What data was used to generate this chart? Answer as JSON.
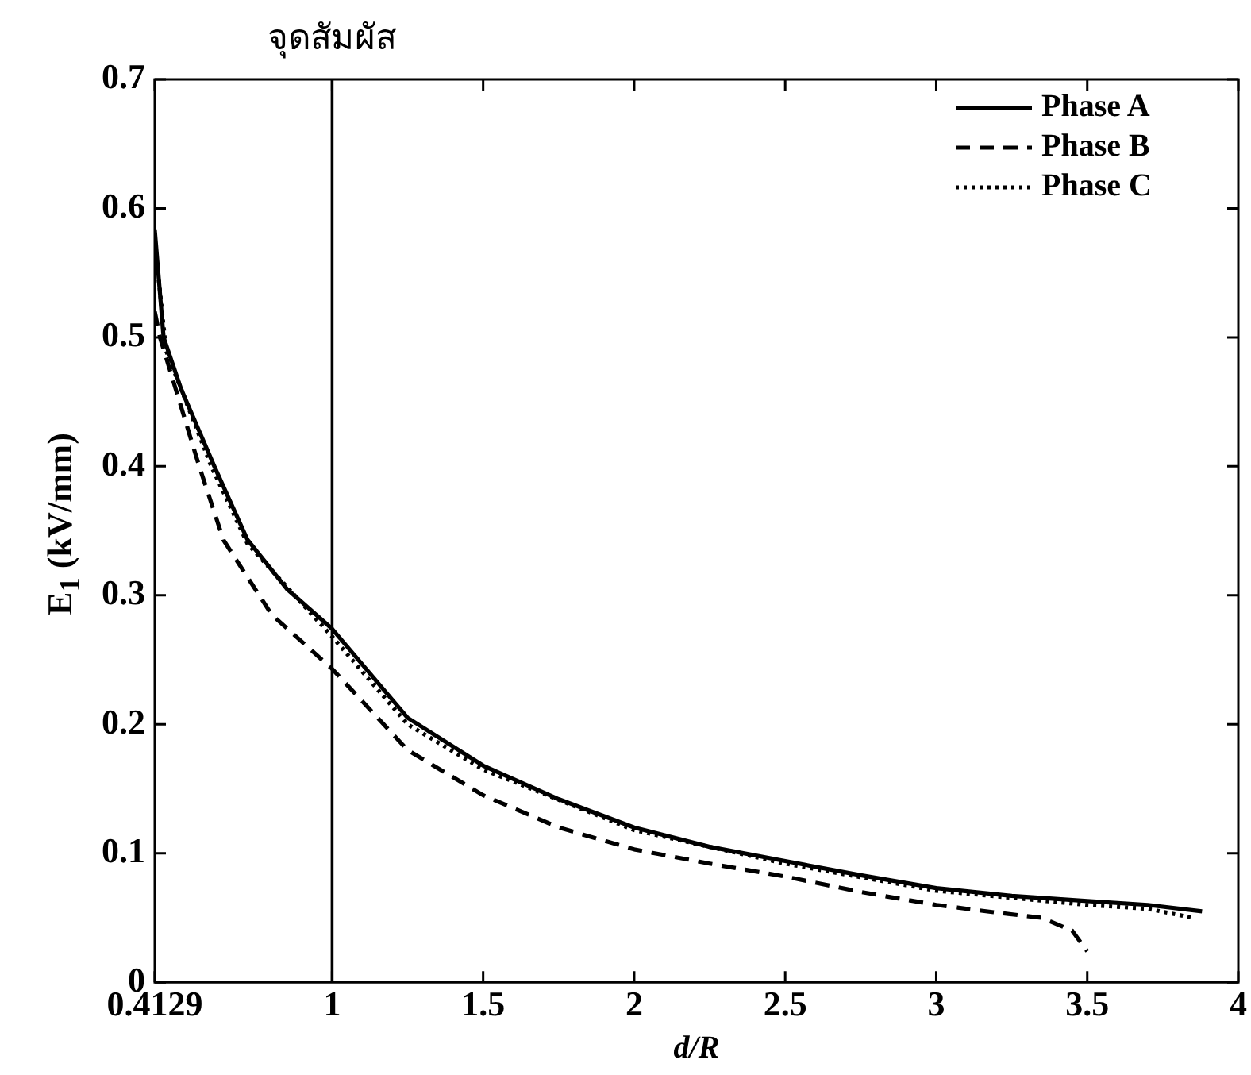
{
  "chart_data": {
    "type": "line",
    "xlabel": "d/R",
    "ylabel": "E$_{1}$ (kV/mm)",
    "xlim": [
      0.4129,
      4
    ],
    "xticks": [
      0.4129,
      1,
      1.5,
      2,
      2.5,
      3,
      3.5,
      4
    ],
    "ylim": [
      0,
      0.7
    ],
    "yticks": [
      0,
      0.1,
      0.2,
      0.3,
      0.4,
      0.5,
      0.6,
      0.7
    ],
    "grid": false,
    "legend": "top right",
    "marker": "none",
    "ref_lines": [
      {
        "axis": "x",
        "value": 1,
        "label": "จุดสัมผัส",
        "color": "#000000",
        "line_style": "solid"
      }
    ],
    "series": [
      {
        "name": "Phase A",
        "color": "#000000",
        "line_style": "solid",
        "x": [
          0.4129,
          0.442,
          0.5,
          0.61,
          0.72,
          0.85,
          1,
          1.25,
          1.5,
          1.75,
          2,
          2.25,
          2.5,
          2.75,
          3,
          3.25,
          3.5,
          3.7,
          3.88
        ],
        "values": [
          0.583,
          0.5,
          0.46,
          0.4,
          0.343,
          0.305,
          0.274,
          0.205,
          0.168,
          0.142,
          0.12,
          0.105,
          0.094,
          0.083,
          0.073,
          0.067,
          0.063,
          0.06,
          0.055
        ]
      },
      {
        "name": "Phase B",
        "color": "#000000",
        "line_style": "dashed",
        "x": [
          0.4129,
          0.43,
          0.56,
          0.64,
          0.8,
          1,
          1.25,
          1.5,
          1.75,
          2,
          2.25,
          2.5,
          2.75,
          3,
          3.2,
          3.35,
          3.45,
          3.5
        ],
        "values": [
          0.52,
          0.5,
          0.4,
          0.343,
          0.285,
          0.243,
          0.18,
          0.145,
          0.12,
          0.103,
          0.092,
          0.082,
          0.07,
          0.06,
          0.054,
          0.05,
          0.04,
          0.024
        ]
      },
      {
        "name": "Phase C",
        "color": "#000000",
        "line_style": "dotted",
        "x": [
          0.4129,
          0.45,
          0.6,
          0.72,
          1,
          1.25,
          1.5,
          2,
          2.5,
          3,
          3.5,
          3.7,
          3.85
        ],
        "values": [
          0.575,
          0.49,
          0.4,
          0.34,
          0.268,
          0.2,
          0.165,
          0.118,
          0.092,
          0.071,
          0.06,
          0.057,
          0.05
        ]
      }
    ]
  }
}
